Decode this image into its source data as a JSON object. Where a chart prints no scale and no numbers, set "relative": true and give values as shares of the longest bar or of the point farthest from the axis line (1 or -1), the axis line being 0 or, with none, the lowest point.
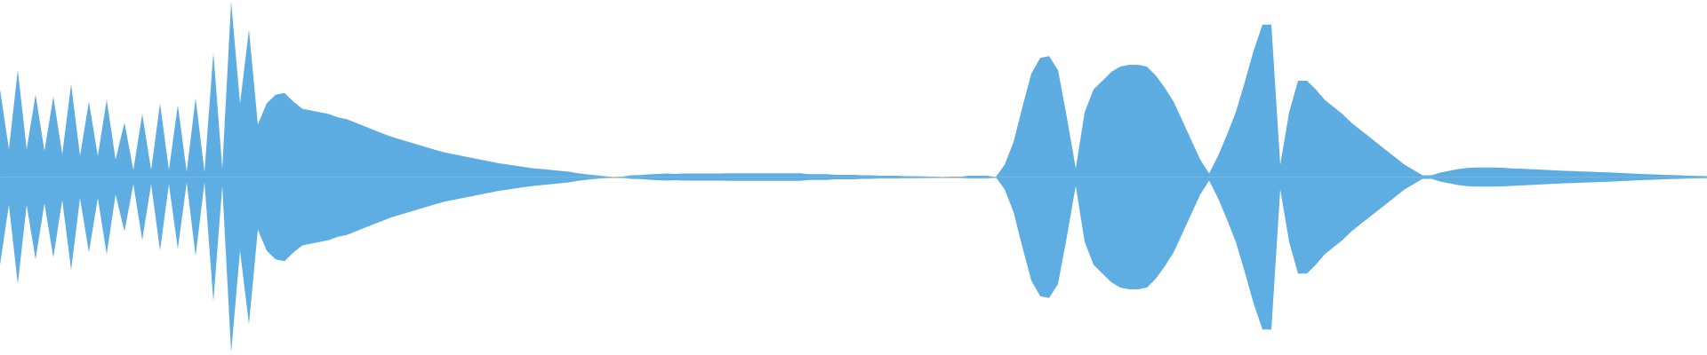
{
  "chart_data": {
    "type": "area",
    "relative": true,
    "categories": [
      null,
      null,
      null,
      null,
      null,
      null,
      null,
      null,
      null,
      null,
      null,
      null,
      null,
      null,
      null,
      null,
      null,
      null,
      null,
      null,
      null,
      null,
      null,
      null,
      null,
      null,
      null,
      null,
      null,
      null,
      null,
      null,
      null,
      null,
      null,
      null,
      null,
      null,
      null,
      null,
      null,
      null,
      null,
      null,
      null,
      null,
      null,
      null,
      null,
      null,
      null,
      null,
      null,
      null,
      null,
      null,
      null,
      null,
      null,
      null,
      null,
      null,
      null,
      null,
      null,
      null,
      null,
      null,
      null,
      null,
      null,
      null,
      null,
      null,
      null,
      null,
      null,
      null,
      null,
      null,
      null,
      null,
      null,
      null,
      null,
      null,
      null,
      null,
      null,
      null,
      null,
      null,
      null,
      null,
      null,
      null,
      null,
      null,
      null,
      null,
      null,
      null,
      null,
      null,
      null,
      null,
      null,
      null,
      null,
      null,
      null,
      null,
      null,
      null,
      null,
      null,
      null,
      null,
      null,
      null,
      null,
      null,
      null,
      null,
      null,
      null,
      null,
      null,
      null,
      null,
      null,
      null,
      null,
      null,
      null,
      null,
      null,
      null,
      null,
      null,
      null,
      null,
      null,
      null,
      null,
      null,
      null,
      null,
      null,
      null,
      null,
      null,
      null,
      null,
      null,
      null,
      null,
      null,
      null,
      null,
      null,
      null,
      null,
      null,
      null,
      null,
      null,
      null,
      null,
      null,
      null,
      null,
      null,
      null,
      null,
      null,
      null,
      null,
      null,
      null,
      null,
      null,
      null,
      null,
      null,
      null,
      null,
      null,
      null,
      null,
      null,
      null,
      null
    ],
    "series": [
      {
        "color": "#5dade2",
        "values": [
          0.5,
          0.16,
          0.61,
          0.16,
          0.47,
          0.15,
          0.46,
          0.13,
          0.53,
          0.12,
          0.43,
          0.12,
          0.44,
          0.1,
          0.31,
          0.04,
          0.36,
          0.04,
          0.42,
          0.04,
          0.41,
          0.03,
          0.45,
          0.03,
          0.71,
          0.05,
          1,
          0.42,
          0.84,
          0.3,
          0.42,
          0.47,
          0.48,
          0.43,
          0.39,
          0.38,
          0.37,
          0.36,
          0.34,
          0.33,
          0.31,
          0.29,
          0.27,
          0.25,
          0.23,
          0.215,
          0.2,
          0.185,
          0.17,
          0.155,
          0.14,
          0.13,
          0.12,
          0.11,
          0.1,
          0.09,
          0.08,
          0.072,
          0.065,
          0.057,
          0.05,
          0.045,
          0.04,
          0.035,
          0.03,
          0.022,
          0.015,
          0.01,
          0.005,
          0,
          0.003,
          0.01,
          0.012,
          0.015,
          0.018,
          0.02,
          0.018,
          0.02,
          0.02,
          0.02,
          0.02,
          0.02,
          0.021,
          0.021,
          0.021,
          0.021,
          0.021,
          0.021,
          0.021,
          0.021,
          0.021,
          0.016,
          0.016,
          0.016,
          0.013,
          0.013,
          0.013,
          0.01,
          0.01,
          0.008,
          0.008,
          0.008,
          0.005,
          0.005,
          0.004,
          0.003,
          0,
          0.003,
          0.003,
          0.008,
          0.008,
          0.008,
          0,
          0.07,
          0.2,
          0.4,
          0.59,
          0.68,
          0.69,
          0.61,
          0.34,
          0.05,
          0.37,
          0.5,
          0.55,
          0.6,
          0.63,
          0.64,
          0.64,
          0.63,
          0.58,
          0.51,
          0.43,
          0.32,
          0.21,
          0.1,
          0.02,
          0.12,
          0.24,
          0.37,
          0.54,
          0.72,
          0.87,
          0.87,
          0.07,
          0.37,
          0.55,
          0.55,
          0.5,
          0.44,
          0.4,
          0.36,
          0.31,
          0.27,
          0.23,
          0.19,
          0.15,
          0.11,
          0.07,
          0.04,
          0.01,
          0.01,
          0.025,
          0.035,
          0.045,
          0.052,
          0.055,
          0.055,
          0.055,
          0.053,
          0.05,
          0.048,
          0.045,
          0.043,
          0.04,
          0.038,
          0.035,
          0.034,
          0.032,
          0.03,
          0.028,
          0.026,
          0.024,
          0.021,
          0.019,
          0.017,
          0.015,
          0.013,
          0.012,
          0.01,
          0.008,
          0.006,
          0.005
        ]
      },
      {
        "color": "#5eaee3",
        "values": [
          -0.5,
          -0.16,
          -0.61,
          -0.16,
          -0.47,
          -0.15,
          -0.46,
          -0.13,
          -0.53,
          -0.12,
          -0.43,
          -0.12,
          -0.44,
          -0.1,
          -0.31,
          -0.04,
          -0.36,
          -0.04,
          -0.42,
          -0.04,
          -0.41,
          -0.03,
          -0.45,
          -0.03,
          -0.71,
          -0.05,
          -1,
          -0.42,
          -0.84,
          -0.3,
          -0.42,
          -0.47,
          -0.48,
          -0.43,
          -0.39,
          -0.38,
          -0.37,
          -0.36,
          -0.34,
          -0.33,
          -0.31,
          -0.29,
          -0.27,
          -0.25,
          -0.23,
          -0.215,
          -0.2,
          -0.185,
          -0.17,
          -0.155,
          -0.14,
          -0.13,
          -0.12,
          -0.11,
          -0.1,
          -0.09,
          -0.08,
          -0.072,
          -0.065,
          -0.057,
          -0.05,
          -0.045,
          -0.04,
          -0.035,
          -0.03,
          -0.022,
          -0.015,
          -0.01,
          -0.005,
          0,
          -0.003,
          -0.01,
          -0.012,
          -0.015,
          -0.018,
          -0.02,
          -0.018,
          -0.02,
          -0.02,
          -0.02,
          -0.02,
          -0.02,
          -0.021,
          -0.021,
          -0.021,
          -0.021,
          -0.021,
          -0.021,
          -0.021,
          -0.021,
          -0.021,
          -0.016,
          -0.016,
          -0.016,
          -0.013,
          -0.013,
          -0.013,
          -0.01,
          -0.01,
          -0.008,
          -0.008,
          -0.008,
          -0.005,
          -0.005,
          -0.004,
          -0.003,
          0,
          -0.003,
          -0.003,
          -0.008,
          -0.008,
          -0.008,
          0,
          -0.07,
          -0.2,
          -0.4,
          -0.59,
          -0.68,
          -0.69,
          -0.61,
          -0.34,
          -0.05,
          -0.37,
          -0.5,
          -0.55,
          -0.6,
          -0.63,
          -0.64,
          -0.64,
          -0.63,
          -0.58,
          -0.51,
          -0.43,
          -0.32,
          -0.21,
          -0.1,
          -0.02,
          -0.12,
          -0.24,
          -0.37,
          -0.54,
          -0.72,
          -0.87,
          -0.87,
          -0.07,
          -0.37,
          -0.55,
          -0.55,
          -0.5,
          -0.44,
          -0.4,
          -0.36,
          -0.31,
          -0.27,
          -0.23,
          -0.19,
          -0.15,
          -0.11,
          -0.07,
          -0.04,
          -0.01,
          -0.01,
          -0.025,
          -0.035,
          -0.045,
          -0.052,
          -0.055,
          -0.055,
          -0.055,
          -0.053,
          -0.05,
          -0.048,
          -0.045,
          -0.043,
          -0.04,
          -0.038,
          -0.035,
          -0.034,
          -0.032,
          -0.03,
          -0.028,
          -0.026,
          -0.024,
          -0.021,
          -0.019,
          -0.017,
          -0.015,
          -0.013,
          -0.012,
          -0.01,
          -0.008,
          -0.006,
          -0.005
        ]
      }
    ]
  }
}
